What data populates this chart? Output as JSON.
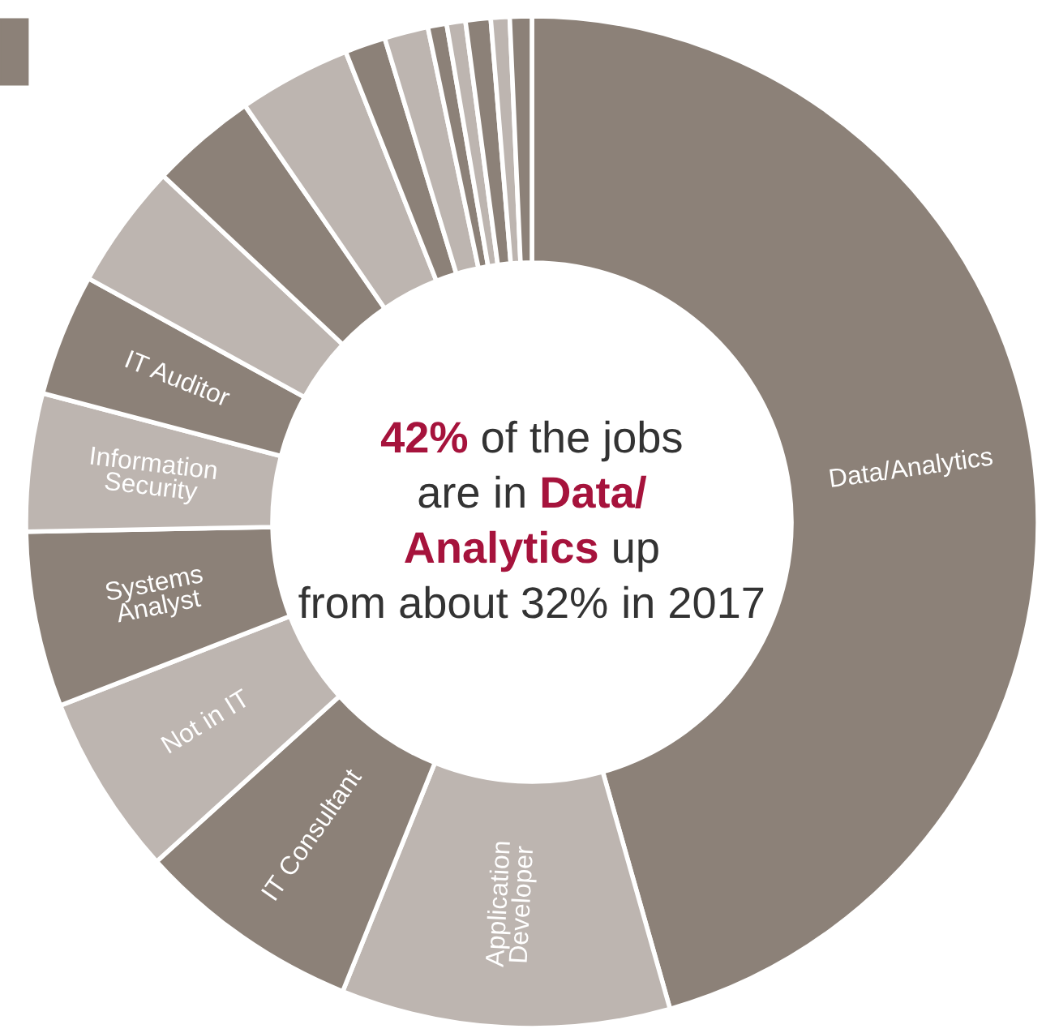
{
  "chart_data": {
    "type": "donut",
    "categories": [
      "Data/Analytics",
      "Application\nDeveloper",
      "IT Consultant",
      "Not in IT",
      "Systems\nAnalyst",
      "Information\nSecurity",
      "IT Auditor",
      null,
      null,
      null,
      null,
      null,
      null,
      null,
      null,
      null,
      null
    ],
    "values": [
      45.6,
      10.5,
      7.2,
      5.8,
      5.6,
      4.4,
      3.9,
      4.0,
      3.4,
      3.6,
      1.3,
      1.4,
      0.6,
      0.6,
      0.8,
      0.6,
      0.7
    ],
    "colors": [
      "#8c8178",
      "#bdb5b0",
      "#8c8178",
      "#bdb5b0",
      "#8c8178",
      "#bdb5b0",
      "#8c8178",
      "#bdb5b0",
      "#8c8178",
      "#bdb5b0",
      "#8c8178",
      "#bdb5b0",
      "#8c8178",
      "#bdb5b0",
      "#8c8178",
      "#bdb5b0",
      "#8c8178"
    ],
    "annotations": [
      "42% of the jobs are in Data/ Analytics up from about 32% in 2017"
    ]
  }
}
